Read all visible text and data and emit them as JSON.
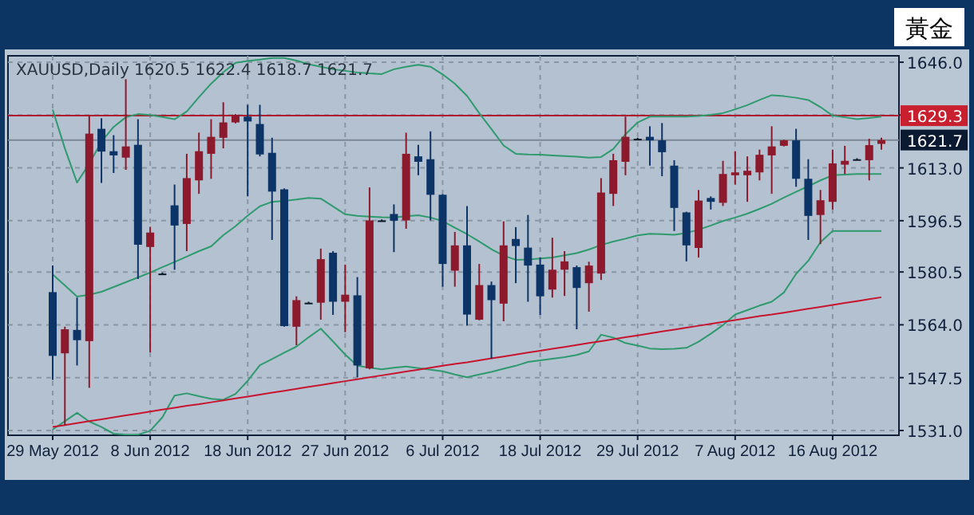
{
  "chart_data": {
    "type": "candlestick",
    "title": "黃金",
    "subtitle": "XAUUSD,Daily  1620.5 1622.4 1618.7 1621.7",
    "categories": [
      "29 May 2012",
      null,
      null,
      null,
      null,
      null,
      null,
      null,
      "8 Jun 2012",
      null,
      null,
      null,
      null,
      null,
      null,
      null,
      "18 Jun 2012",
      null,
      null,
      null,
      null,
      null,
      null,
      null,
      "27 Jun 2012",
      null,
      null,
      null,
      null,
      null,
      null,
      null,
      "6 Jul 2012",
      null,
      null,
      null,
      null,
      null,
      null,
      null,
      "18 Jul 2012",
      null,
      null,
      null,
      null,
      null,
      null,
      null,
      "29 Jul 2012",
      null,
      null,
      null,
      null,
      null,
      null,
      null,
      "7 Aug 2012",
      null,
      null,
      null,
      null,
      null,
      null,
      null,
      "16 Aug 2012",
      null,
      null,
      null,
      null
    ],
    "ohlc": [
      [
        1574.2,
        1582.5,
        1546.8,
        1554.3
      ],
      [
        1555.1,
        1563.4,
        1532.6,
        1562.6
      ],
      [
        1562.4,
        1572.5,
        1551.3,
        1559.2
      ],
      [
        1558.9,
        1629.4,
        1544.3,
        1623.7
      ],
      [
        1625.2,
        1628.5,
        1608.3,
        1618.1
      ],
      [
        1618.2,
        1623.2,
        1611.4,
        1616.9
      ],
      [
        1616.2,
        1640.7,
        1612.4,
        1619.7
      ],
      [
        1620.2,
        1628.2,
        1578.3,
        1589.0
      ],
      [
        1588.3,
        1594.6,
        1555.4,
        1592.8
      ],
      [
        1580.0,
        1580.3,
        1579.7,
        1580.0
      ],
      [
        1601.3,
        1607.8,
        1581.2,
        1595.0
      ],
      [
        1595.5,
        1617.4,
        1587.0,
        1609.8
      ],
      [
        1609.1,
        1624.0,
        1604.9,
        1618.2
      ],
      [
        1617.4,
        1628.2,
        1609.6,
        1622.7
      ],
      [
        1622.4,
        1633.5,
        1619.1,
        1627.2
      ],
      [
        1627.2,
        1629.8,
        1626.9,
        1629.5
      ],
      [
        1629.0,
        1632.7,
        1604.1,
        1627.5
      ],
      [
        1626.7,
        1632.7,
        1616.6,
        1617.2
      ],
      [
        1617.7,
        1622.4,
        1590.5,
        1605.6
      ],
      [
        1606.3,
        1606.6,
        1563.4,
        1563.6
      ],
      [
        1563.4,
        1572.9,
        1557.6,
        1571.7
      ],
      [
        1570.9,
        1571.2,
        1570.6,
        1570.9
      ],
      [
        1570.9,
        1587.8,
        1565.6,
        1584.5
      ],
      [
        1586.5,
        1587.0,
        1567.1,
        1571.2
      ],
      [
        1571.2,
        1582.8,
        1561.7,
        1573.4
      ],
      [
        1573.2,
        1578.9,
        1547.6,
        1551.3
      ],
      [
        1550.4,
        1606.9,
        1550.1,
        1596.6
      ],
      [
        1596.6,
        1596.9,
        1596.3,
        1596.6
      ],
      [
        1598.6,
        1601.6,
        1586.7,
        1596.5
      ],
      [
        1596.6,
        1624.0,
        1594.0,
        1617.4
      ],
      [
        1616.6,
        1620.2,
        1610.7,
        1614.9
      ],
      [
        1615.7,
        1624.4,
        1596.6,
        1604.6
      ],
      [
        1604.6,
        1604.8,
        1575.9,
        1583.0
      ],
      [
        1580.9,
        1593.0,
        1575.9,
        1588.8
      ],
      [
        1588.8,
        1601.1,
        1563.7,
        1567.2
      ],
      [
        1565.6,
        1583.0,
        1565.4,
        1576.4
      ],
      [
        1576.4,
        1577.5,
        1553.4,
        1571.7
      ],
      [
        1570.6,
        1596.3,
        1565.1,
        1588.8
      ],
      [
        1590.8,
        1594.5,
        1577.0,
        1588.6
      ],
      [
        1588.1,
        1598.3,
        1571.2,
        1582.5
      ],
      [
        1582.8,
        1585.0,
        1567.1,
        1572.9
      ],
      [
        1575.0,
        1591.2,
        1572.5,
        1581.2
      ],
      [
        1581.2,
        1587.0,
        1573.0,
        1583.8
      ],
      [
        1582.0,
        1582.5,
        1562.6,
        1575.5
      ],
      [
        1577.0,
        1583.7,
        1568.1,
        1582.5
      ],
      [
        1580.0,
        1609.8,
        1578.0,
        1605.3
      ],
      [
        1604.9,
        1617.4,
        1601.1,
        1615.4
      ],
      [
        1614.9,
        1629.0,
        1610.7,
        1622.7
      ],
      [
        1622.1,
        1622.4,
        1621.8,
        1622.1
      ],
      [
        1622.7,
        1626.0,
        1613.7,
        1621.6
      ],
      [
        1621.6,
        1627.0,
        1610.4,
        1617.9
      ],
      [
        1613.7,
        1615.4,
        1593.3,
        1600.5
      ],
      [
        1599.1,
        1599.3,
        1583.8,
        1588.8
      ],
      [
        1588.0,
        1606.1,
        1585.0,
        1602.8
      ],
      [
        1603.6,
        1604.1,
        1600.0,
        1602.4
      ],
      [
        1602.1,
        1615.2,
        1601.1,
        1611.1
      ],
      [
        1610.7,
        1618.2,
        1607.8,
        1611.6
      ],
      [
        1610.7,
        1616.6,
        1602.4,
        1612.1
      ],
      [
        1611.6,
        1618.7,
        1609.1,
        1617.1
      ],
      [
        1616.9,
        1626.0,
        1604.9,
        1619.7
      ],
      [
        1619.9,
        1621.8,
        1619.7,
        1621.6
      ],
      [
        1621.6,
        1625.2,
        1607.1,
        1609.6
      ],
      [
        1609.6,
        1615.7,
        1590.5,
        1598.0
      ],
      [
        1598.3,
        1606.1,
        1589.2,
        1602.9
      ],
      [
        1602.4,
        1618.7,
        1600.0,
        1614.4
      ],
      [
        1614.0,
        1619.9,
        1611.1,
        1615.2
      ],
      [
        1615.7,
        1616.0,
        1615.4,
        1615.7
      ],
      [
        1615.4,
        1622.1,
        1609.1,
        1620.1
      ],
      [
        1620.5,
        1622.4,
        1618.7,
        1621.7
      ]
    ],
    "colors": [
      "#0d3466",
      "#8c1a2c",
      "#0d3466",
      "#8c1a2c",
      "#0d3466",
      "#0d3466",
      "#8c1a2c",
      "#0d3466",
      "#8c1a2c",
      "#0d1a2a",
      "#0d3466",
      "#8c1a2c",
      "#8c1a2c",
      "#8c1a2c",
      "#8c1a2c",
      "#8c1a2c",
      "#0d3466",
      "#0d3466",
      "#0d3466",
      "#0d3466",
      "#8c1a2c",
      "#0d1a2a",
      "#8c1a2c",
      "#0d3466",
      "#8c1a2c",
      "#0d3466",
      "#8c1a2c",
      "#0d1a2a",
      "#0d3466",
      "#8c1a2c",
      "#0d3466",
      "#0d3466",
      "#0d3466",
      "#8c1a2c",
      "#0d3466",
      "#8c1a2c",
      "#0d3466",
      "#8c1a2c",
      "#0d3466",
      "#0d3466",
      "#0d3466",
      "#8c1a2c",
      "#8c1a2c",
      "#0d3466",
      "#8c1a2c",
      "#8c1a2c",
      "#8c1a2c",
      "#8c1a2c",
      "#0d1a2a",
      "#0d3466",
      "#0d3466",
      "#0d3466",
      "#0d3466",
      "#8c1a2c",
      "#0d3466",
      "#8c1a2c",
      "#8c1a2c",
      "#8c1a2c",
      "#8c1a2c",
      "#8c1a2c",
      "#8c1a2c",
      "#0d3466",
      "#0d3466",
      "#8c1a2c",
      "#8c1a2c",
      "#8c1a2c",
      "#0d1a2a",
      "#8c1a2c",
      "#8c1a2c"
    ],
    "series": [
      {
        "type": "line",
        "color": "#2e9a6e",
        "values": [
          1631.2,
          1619.1,
          1608.4,
          1614.3,
          1621.2,
          1625.8,
          1628.8,
          1629.8,
          1629.5,
          1628.9,
          1628.2,
          1630.6,
          1635.1,
          1639.3,
          1642.9,
          1645.8,
          1646.4,
          1646.8,
          1647.3,
          1647.3,
          1646.5,
          1645.4,
          1644.6,
          1643.8,
          1643.3,
          1642.8,
          1642.5,
          1642.3,
          1643.8,
          1644.6,
          1645.2,
          1644.6,
          1642.2,
          1639.3,
          1635.5,
          1630.1,
          1625.1,
          1620.0,
          1617.4,
          1617.2,
          1617.1,
          1616.9,
          1616.7,
          1616.5,
          1616.2,
          1616.4,
          1618.9,
          1623.5,
          1627.2,
          1629.0,
          1629.0,
          1629.0,
          1629.0,
          1629.2,
          1629.6,
          1630.1,
          1631.3,
          1632.6,
          1634.2,
          1635.7,
          1635.4,
          1634.9,
          1634.2,
          1632.0,
          1629.3,
          1628.8,
          1628.2,
          1628.6,
          1629.0
        ]
      },
      {
        "type": "line",
        "color": "#2e9a6e",
        "values": [
          1579.7,
          1576.3,
          1572.8,
          1573.4,
          1574.3,
          1575.8,
          1577.3,
          1578.8,
          1580.3,
          1582.0,
          1583.6,
          1585.3,
          1587.0,
          1588.5,
          1592.0,
          1594.8,
          1598.1,
          1601.0,
          1602.4,
          1602.7,
          1603.1,
          1603.6,
          1603.4,
          1601.0,
          1598.5,
          1598.0,
          1597.8,
          1597.6,
          1597.5,
          1597.9,
          1598.2,
          1597.5,
          1596.4,
          1594.3,
          1592.3,
          1590.0,
          1587.6,
          1585.6,
          1584.3,
          1584.4,
          1584.7,
          1585.0,
          1585.7,
          1586.4,
          1587.5,
          1588.9,
          1590.0,
          1590.9,
          1591.9,
          1592.4,
          1592.3,
          1592.1,
          1592.7,
          1593.7,
          1595.0,
          1596.4,
          1597.5,
          1598.7,
          1600.2,
          1601.8,
          1603.7,
          1605.5,
          1607.3,
          1609.1,
          1610.7,
          1610.9,
          1611.1,
          1611.1,
          1611.1
        ]
      },
      {
        "type": "line",
        "color": "#2e9a6e",
        "values": [
          1531.3,
          1533.9,
          1536.5,
          1533.8,
          1532.1,
          1530.0,
          1529.7,
          1529.7,
          1530.9,
          1535.1,
          1541.9,
          1542.6,
          1541.7,
          1540.9,
          1540.6,
          1542.4,
          1546.5,
          1551.4,
          1553.3,
          1555.3,
          1557.2,
          1560.1,
          1562.8,
          1558.8,
          1554.7,
          1551.2,
          1550.6,
          1550.1,
          1550.6,
          1551.0,
          1550.5,
          1550.0,
          1549.5,
          1548.5,
          1547.6,
          1548.5,
          1549.3,
          1550.3,
          1551.2,
          1552.4,
          1552.9,
          1553.4,
          1553.9,
          1554.6,
          1555.7,
          1560.9,
          1560.0,
          1558.3,
          1557.5,
          1556.6,
          1556.4,
          1556.5,
          1556.8,
          1558.7,
          1561.2,
          1563.9,
          1567.2,
          1568.6,
          1570.0,
          1571.2,
          1574.1,
          1579.9,
          1584.0,
          1589.8,
          1593.3,
          1593.3,
          1593.3,
          1593.3,
          1593.3
        ]
      },
      {
        "type": "line",
        "color": "#c8142e",
        "values": [
          1532.1,
          1532.7,
          1533.3,
          1533.9,
          1534.5,
          1535.1,
          1535.7,
          1536.3,
          1536.9,
          1537.5,
          1538.1,
          1538.7,
          1539.2,
          1539.8,
          1540.4,
          1541.0,
          1541.6,
          1542.2,
          1542.8,
          1543.4,
          1544.0,
          1544.6,
          1545.2,
          1545.8,
          1546.4,
          1547.0,
          1547.6,
          1548.2,
          1548.8,
          1549.4,
          1550.0,
          1550.6,
          1551.2,
          1551.8,
          1552.3,
          1552.9,
          1553.5,
          1554.1,
          1554.7,
          1555.3,
          1555.9,
          1556.5,
          1557.1,
          1557.7,
          1558.3,
          1558.9,
          1559.5,
          1560.1,
          1560.7,
          1561.3,
          1561.9,
          1562.5,
          1563.1,
          1563.7,
          1564.3,
          1564.9,
          1565.5,
          1566.1,
          1566.7,
          1567.2,
          1567.8,
          1568.4,
          1569.0,
          1569.6,
          1570.2,
          1570.8,
          1571.4,
          1572.0,
          1572.6
        ]
      }
    ],
    "ylim": [
      1529.5,
      1648
    ],
    "yticks": [
      {
        "value": 1531,
        "label": "1531.0"
      },
      {
        "value": 1547.5,
        "label": "1547.5"
      },
      {
        "value": 1564,
        "label": "1564.0"
      },
      {
        "value": 1580.5,
        "label": "1580.5"
      },
      {
        "value": 1596.5,
        "label": "1596.5"
      },
      {
        "value": 1613,
        "label": "1613.0"
      },
      {
        "value": 1629.5,
        "label": null
      },
      {
        "value": 1646,
        "label": "1646.0"
      }
    ],
    "ref_lines": [
      {
        "axis": "y",
        "value": 1629.3,
        "label": "1629.3",
        "color": "#b01c2e"
      },
      {
        "axis": "y",
        "value": 1621.7,
        "label": "1621.7",
        "color": "#7d8794"
      }
    ],
    "grid": true
  }
}
